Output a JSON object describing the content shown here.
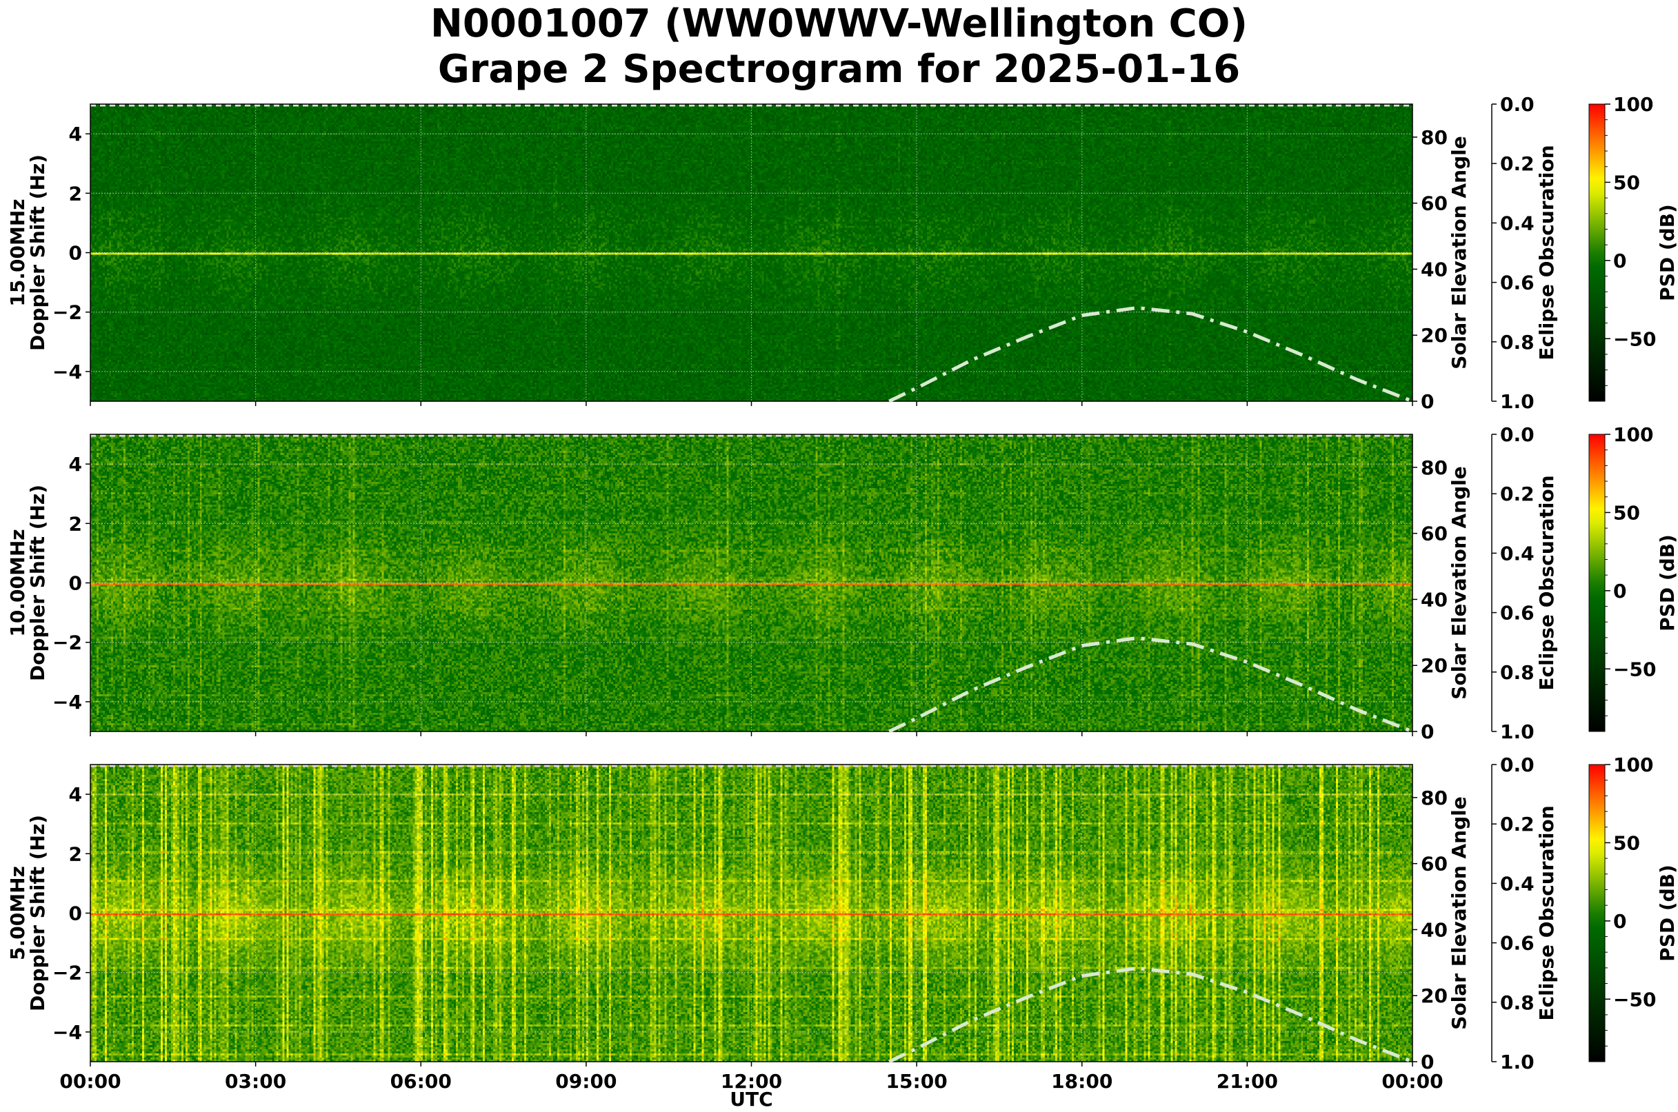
{
  "title_line1": "N0001007 (WW0WWV-Wellington CO)",
  "title_line2": "Grape 2 Spectrogram for 2025-01-16",
  "chart_data": {
    "type": "heatmap",
    "xlabel": "UTC",
    "x_ticks": [
      "00:00",
      "03:00",
      "06:00",
      "09:00",
      "12:00",
      "15:00",
      "18:00",
      "21:00",
      "00:00"
    ],
    "xlim_hours": [
      0,
      24
    ],
    "grid": true,
    "panels": [
      {
        "frequency_label": "15.00MHz",
        "ylabel": "Doppler Shift (Hz)",
        "ylim": [
          -5,
          5
        ],
        "y_ticks": [
          -4,
          -2,
          0,
          2,
          4
        ],
        "carrier_psd_db": 50,
        "background_psd_db": -10,
        "streak_intensity": 0.15
      },
      {
        "frequency_label": "10.00MHz",
        "ylabel": "Doppler Shift (Hz)",
        "ylim": [
          -5,
          5
        ],
        "y_ticks": [
          -4,
          -2,
          0,
          2,
          4
        ],
        "carrier_psd_db": 85,
        "background_psd_db": 5,
        "streak_intensity": 0.4
      },
      {
        "frequency_label": "5.00MHz",
        "ylabel": "Doppler Shift (Hz)",
        "ylim": [
          -5,
          5
        ],
        "y_ticks": [
          -4,
          -2,
          0,
          2,
          4
        ],
        "carrier_psd_db": 90,
        "background_psd_db": 12,
        "streak_intensity": 1.0
      }
    ],
    "solar_elevation": {
      "ylabel": "Solar Elevation Angle",
      "ylim": [
        0,
        90
      ],
      "y_ticks": [
        0,
        20,
        40,
        60,
        80
      ],
      "color": "#d8ead0",
      "style": "dash-dot",
      "points_hours_deg": [
        [
          14.5,
          0
        ],
        [
          15,
          4
        ],
        [
          16,
          12.5
        ],
        [
          17,
          19.5
        ],
        [
          18,
          26
        ],
        [
          19,
          28.3
        ],
        [
          20,
          26.5
        ],
        [
          21,
          21
        ],
        [
          22,
          14
        ],
        [
          23,
          6.5
        ],
        [
          24,
          0
        ]
      ]
    },
    "eclipse": {
      "ylabel": "Eclipse Obscuration",
      "ylim": [
        1.0,
        0.0
      ],
      "y_ticks": [
        "0.0",
        "0.2",
        "0.4",
        "0.6",
        "0.8",
        "1.0"
      ]
    },
    "colorbar": {
      "label": "PSD (dB)",
      "range_db": [
        -90,
        100
      ],
      "ticks": [
        "100",
        "50",
        "0",
        "−50"
      ],
      "tick_values": [
        100,
        50,
        0,
        -50
      ],
      "colors": {
        "low": "#000000",
        "mid": "#007000",
        "yellow": "#ffff00",
        "high": "#ff0000"
      }
    }
  }
}
